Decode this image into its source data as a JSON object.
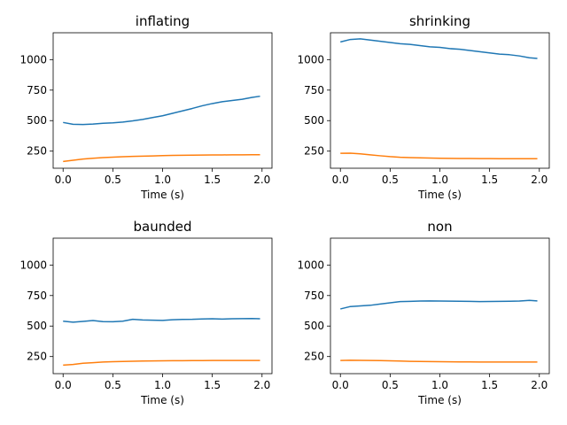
{
  "chart_data": [
    {
      "type": "line",
      "title": "inflating",
      "xlabel": "Time (s)",
      "ylabel": "",
      "xlim": [
        -0.1,
        2.1
      ],
      "ylim": [
        110,
        1220
      ],
      "xticks": [
        "0.0",
        "0.5",
        "1.0",
        "1.5",
        "2.0"
      ],
      "yticks": [
        "250",
        "500",
        "750",
        "1000"
      ],
      "grid": false,
      "series": [
        {
          "color": "#1f77b4",
          "x": [
            0.0,
            0.1,
            0.2,
            0.3,
            0.4,
            0.5,
            0.6,
            0.7,
            0.8,
            0.9,
            1.0,
            1.1,
            1.2,
            1.3,
            1.4,
            1.5,
            1.6,
            1.7,
            1.8,
            1.9,
            1.98
          ],
          "values": [
            485,
            470,
            468,
            472,
            478,
            482,
            488,
            498,
            510,
            525,
            540,
            560,
            580,
            600,
            622,
            640,
            655,
            665,
            675,
            690,
            700
          ]
        },
        {
          "color": "#ff7f0e",
          "x": [
            0.0,
            0.1,
            0.2,
            0.3,
            0.4,
            0.5,
            0.6,
            0.7,
            0.8,
            0.9,
            1.0,
            1.1,
            1.2,
            1.3,
            1.4,
            1.5,
            1.6,
            1.7,
            1.8,
            1.9,
            1.98
          ],
          "values": [
            165,
            175,
            185,
            192,
            197,
            201,
            204,
            207,
            209,
            211,
            213,
            215,
            216,
            217,
            218,
            219,
            219,
            220,
            220,
            221,
            221
          ]
        }
      ]
    },
    {
      "type": "line",
      "title": "shrinking",
      "xlabel": "Time (s)",
      "ylabel": "",
      "xlim": [
        -0.1,
        2.1
      ],
      "ylim": [
        110,
        1220
      ],
      "xticks": [
        "0.0",
        "0.5",
        "1.0",
        "1.5",
        "2.0"
      ],
      "yticks": [
        "250",
        "500",
        "750",
        "1000"
      ],
      "grid": false,
      "series": [
        {
          "color": "#1f77b4",
          "x": [
            0.0,
            0.1,
            0.2,
            0.3,
            0.4,
            0.5,
            0.6,
            0.7,
            0.8,
            0.9,
            1.0,
            1.1,
            1.2,
            1.3,
            1.4,
            1.5,
            1.6,
            1.7,
            1.8,
            1.9,
            1.98
          ],
          "values": [
            1145,
            1165,
            1170,
            1160,
            1150,
            1140,
            1130,
            1125,
            1115,
            1105,
            1100,
            1090,
            1085,
            1075,
            1065,
            1055,
            1045,
            1040,
            1030,
            1015,
            1010
          ]
        },
        {
          "color": "#ff7f0e",
          "x": [
            0.0,
            0.1,
            0.2,
            0.3,
            0.4,
            0.5,
            0.6,
            0.7,
            0.8,
            0.9,
            1.0,
            1.1,
            1.2,
            1.3,
            1.4,
            1.5,
            1.6,
            1.7,
            1.8,
            1.9,
            1.98
          ],
          "values": [
            232,
            233,
            228,
            220,
            212,
            205,
            200,
            197,
            195,
            193,
            192,
            191,
            190,
            190,
            189,
            189,
            188,
            188,
            188,
            188,
            188
          ]
        }
      ]
    },
    {
      "type": "line",
      "title": "baunded",
      "xlabel": "Time (s)",
      "ylabel": "",
      "xlim": [
        -0.1,
        2.1
      ],
      "ylim": [
        110,
        1220
      ],
      "xticks": [
        "0.0",
        "0.5",
        "1.0",
        "1.5",
        "2.0"
      ],
      "yticks": [
        "250",
        "500",
        "750",
        "1000"
      ],
      "grid": false,
      "series": [
        {
          "color": "#1f77b4",
          "x": [
            0.0,
            0.1,
            0.2,
            0.3,
            0.4,
            0.5,
            0.6,
            0.7,
            0.8,
            0.9,
            1.0,
            1.1,
            1.2,
            1.3,
            1.4,
            1.5,
            1.6,
            1.7,
            1.8,
            1.9,
            1.98
          ],
          "values": [
            540,
            532,
            538,
            545,
            536,
            535,
            540,
            555,
            550,
            548,
            546,
            552,
            554,
            555,
            558,
            560,
            557,
            560,
            561,
            562,
            560
          ]
        },
        {
          "color": "#ff7f0e",
          "x": [
            0.0,
            0.1,
            0.2,
            0.3,
            0.4,
            0.5,
            0.6,
            0.7,
            0.8,
            0.9,
            1.0,
            1.1,
            1.2,
            1.3,
            1.4,
            1.5,
            1.6,
            1.7,
            1.8,
            1.9,
            1.98
          ],
          "values": [
            180,
            185,
            195,
            200,
            205,
            208,
            210,
            212,
            213,
            214,
            215,
            216,
            216,
            217,
            217,
            218,
            218,
            218,
            218,
            218,
            218
          ]
        }
      ]
    },
    {
      "type": "line",
      "title": "non",
      "xlabel": "Time (s)",
      "ylabel": "",
      "xlim": [
        -0.1,
        2.1
      ],
      "ylim": [
        110,
        1220
      ],
      "xticks": [
        "0.0",
        "0.5",
        "1.0",
        "1.5",
        "2.0"
      ],
      "yticks": [
        "250",
        "500",
        "750",
        "1000"
      ],
      "grid": false,
      "series": [
        {
          "color": "#1f77b4",
          "x": [
            0.0,
            0.1,
            0.2,
            0.3,
            0.4,
            0.5,
            0.6,
            0.7,
            0.8,
            0.9,
            1.0,
            1.1,
            1.2,
            1.3,
            1.4,
            1.5,
            1.6,
            1.7,
            1.8,
            1.9,
            1.98
          ],
          "values": [
            640,
            660,
            665,
            670,
            680,
            690,
            700,
            702,
            705,
            706,
            705,
            704,
            703,
            702,
            700,
            701,
            702,
            703,
            705,
            710,
            706
          ]
        },
        {
          "color": "#ff7f0e",
          "x": [
            0.0,
            0.1,
            0.2,
            0.3,
            0.4,
            0.5,
            0.6,
            0.7,
            0.8,
            0.9,
            1.0,
            1.1,
            1.2,
            1.3,
            1.4,
            1.5,
            1.6,
            1.7,
            1.8,
            1.9,
            1.98
          ],
          "values": [
            218,
            220,
            219,
            218,
            217,
            215,
            213,
            211,
            210,
            209,
            208,
            207,
            206,
            206,
            205,
            205,
            205,
            205,
            205,
            205,
            205
          ]
        }
      ]
    }
  ]
}
